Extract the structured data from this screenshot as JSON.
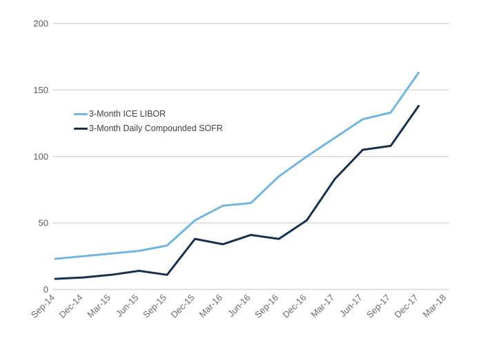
{
  "chart_data": {
    "type": "line",
    "title": "",
    "xlabel": "",
    "ylabel": "",
    "categories": [
      "Sep-14",
      "Dec-14",
      "Mar-15",
      "Jun-15",
      "Sep-15",
      "Dec-15",
      "Mar-16",
      "Jun-16",
      "Sep-16",
      "Dec-16",
      "Mar-17",
      "Jun-17",
      "Sep-17",
      "Dec-17",
      "Mar-18"
    ],
    "series": [
      {
        "name": "3-Month ICE LIBOR",
        "color": "#6fb5e2",
        "values": [
          23,
          25,
          27,
          29,
          33,
          52,
          63,
          65,
          85,
          100,
          114,
          128,
          133,
          163,
          null
        ]
      },
      {
        "name": "3-Month Daily Compounded SOFR",
        "color": "#14304d",
        "values": [
          8,
          9,
          11,
          14,
          11,
          38,
          34,
          41,
          38,
          52,
          83,
          105,
          108,
          138,
          null
        ]
      }
    ],
    "yticks": [
      0,
      50,
      100,
      150,
      200
    ],
    "ylim": [
      0,
      200
    ],
    "grid": "horizontal-only",
    "legend_position": "inside-upper-left"
  },
  "colors": {
    "background": "#ffffff",
    "gridline": "#d9d9d9",
    "y_tick_label": "#595959",
    "x_tick_label": "#6b6b6b",
    "legend_text": "#3f3f3f"
  }
}
